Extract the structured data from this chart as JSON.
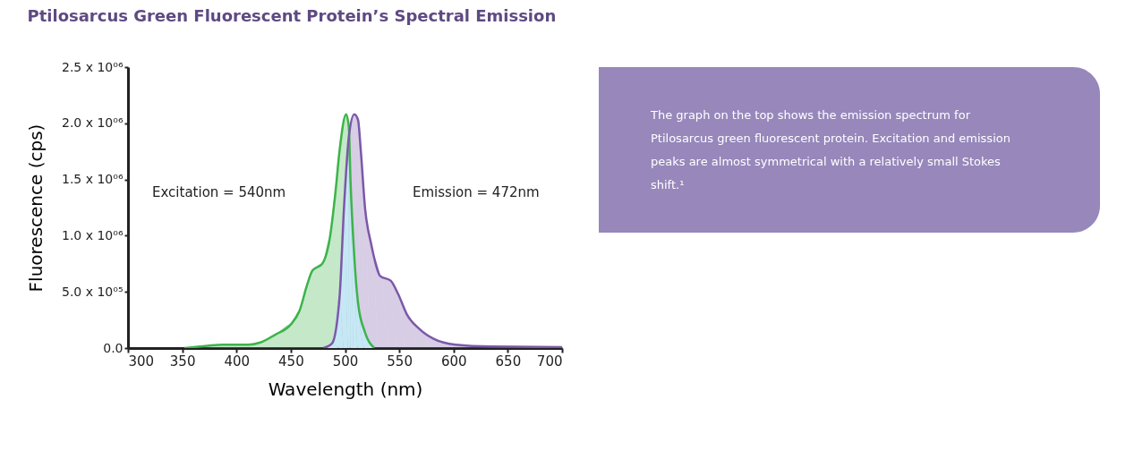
{
  "chart_data": [
    {
      "type": "area",
      "title": "Ptilosarcus Green Fluorescent Protein’s Spectral Emission",
      "xlabel": "Wavelength (nm)",
      "ylabel": "Fluorescence (cps)",
      "annotations": [
        "Excitation = 540nm",
        "Emission = 472nm"
      ],
      "xlim": [
        300,
        700
      ],
      "xticks": [
        300,
        350,
        400,
        450,
        500,
        550,
        600,
        650,
        700
      ],
      "ylim": [
        0,
        2500000
      ],
      "yticks": [
        {
          "value": 0,
          "label": "0.0"
        },
        {
          "value": 500000,
          "label": "5.0 x 10⁰⁵"
        },
        {
          "value": 1000000,
          "label": "1.0 x 10⁰⁶"
        },
        {
          "value": 1500000,
          "label": "1.5 x 10⁰⁶"
        },
        {
          "value": 2000000,
          "label": "2.0 x 10⁰⁶"
        },
        {
          "value": 2500000,
          "label": "2.5 x 10⁰⁶"
        }
      ],
      "grid": false,
      "series": [
        {
          "color": "#3db34a",
          "x": [
            352,
            373,
            387,
            411,
            422,
            436,
            450,
            458,
            465,
            470,
            479,
            486,
            491,
            495,
            501,
            503.5,
            505,
            508,
            512,
            518,
            527
          ],
          "values": [
            0,
            20000,
            30000,
            30000,
            50000,
            120000,
            210000,
            330000,
            560000,
            690000,
            750000,
            980000,
            1370000,
            1760000,
            2080000,
            1970000,
            1500000,
            900000,
            400000,
            150000,
            0
          ]
        },
        {
          "color": "#7b58a8",
          "x": [
            480,
            488,
            495,
            499,
            503.5,
            508.5,
            512,
            514.5,
            518.5,
            524,
            532.5,
            542,
            549,
            557,
            568.5,
            582,
            602,
            635,
            700
          ],
          "values": [
            0,
            40000,
            460000,
            1240000,
            1880000,
            2080000,
            2030000,
            1760000,
            1240000,
            930000,
            640000,
            600000,
            480000,
            300000,
            170000,
            80000,
            30000,
            13000,
            8000
          ]
        },
        {
          "color": "#c6e8f6",
          "x": [
            480,
            488,
            495,
            499,
            503,
            504,
            505,
            508,
            512,
            518,
            527
          ],
          "values": [
            0,
            40000,
            460000,
            1240000,
            1650000,
            1750000,
            1500000,
            900000,
            400000,
            150000,
            0
          ]
        }
      ]
    },
    {
      "type": "other",
      "color": "#9787bb",
      "annotations": [
        "The graph on the top shows the emission spectrum for",
        "Ptilosarcus green fluorescent protein.  Excitation and emission",
        "peaks are almost symmetrical with a relatively small Stokes",
        "shift.¹"
      ]
    }
  ]
}
